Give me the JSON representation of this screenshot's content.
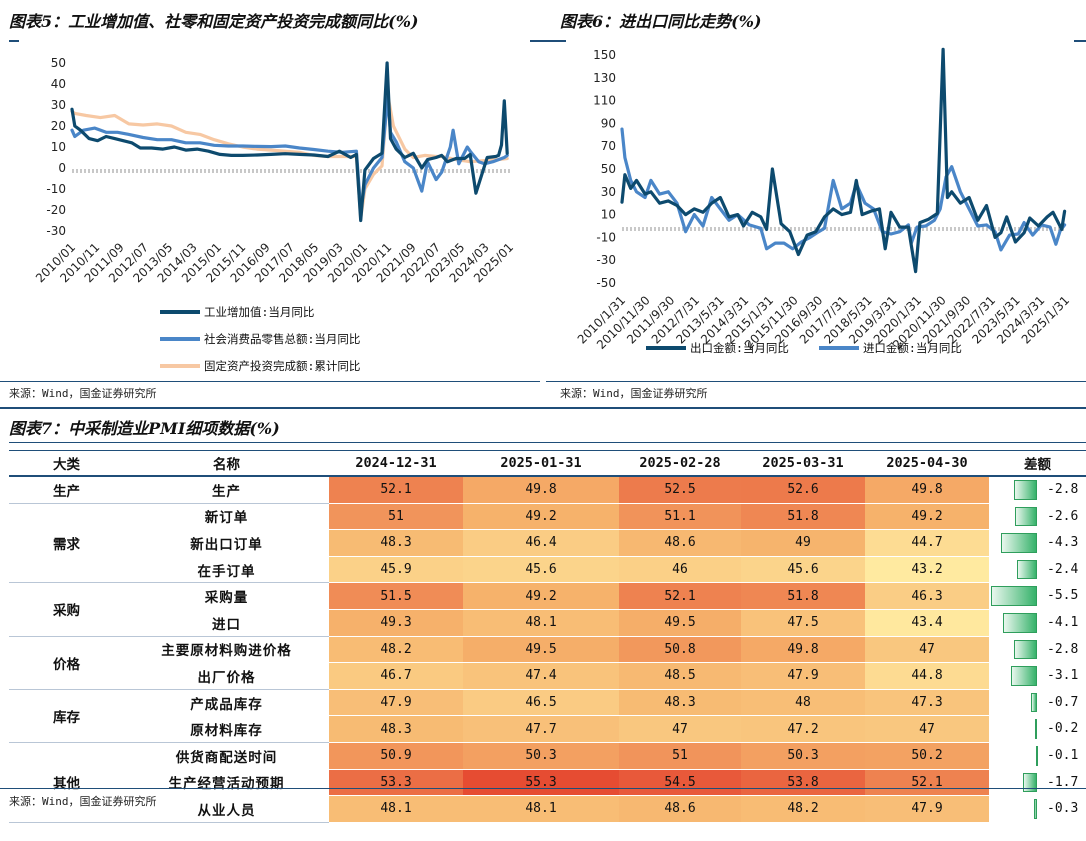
{
  "chart5": {
    "title": "图表5：工业增加值、社零和固定资产投资完成额同比(%)",
    "source": "来源：Wind，国金证券研究所",
    "chart_data": {
      "type": "line",
      "title": "图表5：工业增加值、社零和固定资产投资完成额同比(%)",
      "ylim": [
        -30,
        50
      ],
      "yticks": [
        50,
        40,
        30,
        20,
        10,
        0,
        -10,
        -20,
        -30
      ],
      "xticks": [
        "2010/01",
        "2010/11",
        "2011/09",
        "2012/07",
        "2013/05",
        "2014/03",
        "2015/01",
        "2015/11",
        "2016/09",
        "2017/07",
        "2018/05",
        "2019/03",
        "2020/01",
        "2020/11",
        "2021/09",
        "2022/07",
        "2023/05",
        "2024/03",
        "2025/01"
      ],
      "x_start": 2010.0,
      "x_end": 2025.4,
      "series": [
        {
          "name": "工业增加值:当月同比",
          "color": "#0d4a6e",
          "x": [
            2010.0,
            2010.1,
            2010.3,
            2010.6,
            2010.9,
            2011.2,
            2011.5,
            2011.8,
            2012.1,
            2012.4,
            2012.8,
            2013.2,
            2013.6,
            2014.0,
            2014.4,
            2014.8,
            2015.2,
            2015.6,
            2016.0,
            2016.5,
            2017.0,
            2017.5,
            2018.0,
            2018.5,
            2019.0,
            2019.4,
            2019.8,
            2020.0,
            2020.15,
            2020.3,
            2020.6,
            2020.9,
            2021.08,
            2021.2,
            2021.4,
            2021.7,
            2022.0,
            2022.3,
            2022.5,
            2022.8,
            2023.0,
            2023.2,
            2023.5,
            2023.8,
            2024.0,
            2024.2,
            2024.6,
            2024.9,
            2025.0,
            2025.1,
            2025.2,
            2025.3
          ],
          "values": [
            28,
            20,
            18,
            14,
            13,
            15,
            14,
            13,
            12,
            9.5,
            9.5,
            9,
            10,
            8.5,
            9,
            8,
            6.5,
            6,
            6,
            6.2,
            6.5,
            6.8,
            6.5,
            6.2,
            5.5,
            8,
            5,
            6.5,
            -25,
            -1,
            4.5,
            7,
            50,
            14,
            9,
            5,
            7,
            0,
            4,
            5,
            6,
            3,
            4.5,
            4.5,
            6.5,
            -12,
            5,
            5.5,
            6,
            11,
            32,
            7
          ]
        },
        {
          "name": "社会消费品零售总额:当月同比",
          "color": "#4a86c8",
          "x": [
            2010.0,
            2010.1,
            2010.4,
            2010.8,
            2011.2,
            2011.6,
            2012.0,
            2012.5,
            2013.0,
            2013.5,
            2014.0,
            2014.5,
            2015.0,
            2015.5,
            2016.0,
            2016.5,
            2017.0,
            2017.5,
            2018.0,
            2018.5,
            2019.0,
            2019.5,
            2020.0,
            2020.15,
            2020.3,
            2020.6,
            2020.9,
            2021.1,
            2021.2,
            2021.4,
            2021.7,
            2022.0,
            2022.3,
            2022.5,
            2022.8,
            2023.0,
            2023.3,
            2023.4,
            2023.6,
            2023.9,
            2024.0,
            2024.3,
            2024.5,
            2024.8,
            2025.0,
            2025.2,
            2025.3
          ],
          "values": [
            18,
            15,
            18,
            19,
            17,
            17,
            16,
            14.5,
            13.5,
            13.5,
            12,
            12,
            10.8,
            10.5,
            10.5,
            10.3,
            10.2,
            10.5,
            9.5,
            8.8,
            8,
            7.5,
            8,
            -20,
            -8,
            0,
            5,
            34,
            17,
            12.5,
            3,
            0,
            -11,
            3,
            -5.5,
            -2,
            10,
            18,
            2,
            10,
            8,
            3,
            2,
            3,
            4,
            5,
            6
          ]
        },
        {
          "name": "固定资产投资完成额:累计同比",
          "color": "#f7c8a3",
          "x": [
            2010.0,
            2010.1,
            2010.5,
            2011.0,
            2011.5,
            2012.0,
            2012.5,
            2013.0,
            2013.5,
            2014.0,
            2014.5,
            2015.0,
            2015.5,
            2016.0,
            2016.5,
            2017.0,
            2017.5,
            2018.0,
            2018.5,
            2019.0,
            2019.5,
            2020.0,
            2020.15,
            2020.3,
            2020.6,
            2020.9,
            2021.1,
            2021.3,
            2021.7,
            2022.0,
            2022.4,
            2022.8,
            2023.0,
            2023.5,
            2024.0,
            2024.5,
            2025.0,
            2025.3
          ],
          "values": [
            27,
            26,
            25,
            24,
            25,
            21,
            20.5,
            21,
            20,
            17,
            16,
            13.5,
            11.5,
            10,
            9,
            8.5,
            8,
            7.5,
            6,
            5.5,
            5.5,
            5.5,
            -24,
            -10,
            -3,
            1,
            35,
            20,
            9,
            5,
            6,
            5.5,
            5.5,
            4,
            3,
            3.5,
            4,
            4.5
          ]
        }
      ]
    }
  },
  "chart6": {
    "title": "图表6：进出口同比走势(%)",
    "source": "来源：Wind，国金证券研究所",
    "chart_data": {
      "type": "line",
      "title": "图表6：进出口同比走势(%)",
      "ylim": [
        -50,
        150
      ],
      "yticks": [
        150,
        130,
        110,
        90,
        70,
        50,
        30,
        10,
        -10,
        -30,
        -50
      ],
      "xticks": [
        "2010/1/31",
        "2010/11/30",
        "2011/9/30",
        "2012/7/31",
        "2013/5/31",
        "2014/3/31",
        "2015/1/31",
        "2015/11/30",
        "2016/9/30",
        "2017/7/31",
        "2018/5/31",
        "2019/3/31",
        "2020/1/31",
        "2020/11/30",
        "2021/9/30",
        "2022/7/31",
        "2023/5/31",
        "2024/3/31",
        "2025/1/31"
      ],
      "x_start": 2010.0,
      "x_end": 2025.35,
      "series": [
        {
          "name": "出口金额:当月同比",
          "color": "#0d4a6e",
          "x": [
            2010.0,
            2010.1,
            2010.3,
            2010.5,
            2010.8,
            2011.0,
            2011.3,
            2011.6,
            2011.9,
            2012.2,
            2012.5,
            2012.8,
            2013.1,
            2013.4,
            2013.7,
            2014.0,
            2014.2,
            2014.5,
            2014.8,
            2015.0,
            2015.2,
            2015.5,
            2015.8,
            2016.1,
            2016.4,
            2016.7,
            2017.0,
            2017.3,
            2017.6,
            2017.9,
            2018.1,
            2018.3,
            2018.6,
            2018.9,
            2019.1,
            2019.3,
            2019.6,
            2019.9,
            2020.0,
            2020.15,
            2020.3,
            2020.6,
            2020.9,
            2021.1,
            2021.25,
            2021.4,
            2021.7,
            2022.0,
            2022.3,
            2022.6,
            2022.9,
            2023.1,
            2023.3,
            2023.6,
            2023.9,
            2024.1,
            2024.4,
            2024.7,
            2024.9,
            2025.1,
            2025.2,
            2025.3
          ],
          "values": [
            21,
            45,
            33,
            40,
            28,
            30,
            20,
            22,
            18,
            10,
            15,
            12,
            20,
            25,
            8,
            10,
            0,
            12,
            8,
            -3,
            50,
            2,
            -5,
            -25,
            -8,
            -5,
            8,
            15,
            10,
            12,
            40,
            10,
            13,
            15,
            -20,
            12,
            -1,
            -1,
            -17,
            -40,
            3,
            6,
            11,
            155,
            25,
            30,
            20,
            25,
            5,
            18,
            -10,
            -6,
            8,
            -14,
            -6,
            7,
            0,
            8,
            12,
            2,
            -3,
            13
          ]
        },
        {
          "name": "进口金额:当月同比",
          "color": "#4a86c8",
          "x": [
            2010.0,
            2010.1,
            2010.3,
            2010.5,
            2010.8,
            2011.0,
            2011.3,
            2011.6,
            2011.9,
            2012.2,
            2012.5,
            2012.8,
            2013.1,
            2013.4,
            2013.7,
            2014.0,
            2014.4,
            2014.8,
            2015.0,
            2015.3,
            2015.6,
            2015.9,
            2016.2,
            2016.5,
            2016.8,
            2017.0,
            2017.3,
            2017.6,
            2017.9,
            2018.1,
            2018.4,
            2018.7,
            2019.0,
            2019.3,
            2019.6,
            2019.9,
            2020.0,
            2020.2,
            2020.5,
            2020.8,
            2021.0,
            2021.2,
            2021.4,
            2021.7,
            2022.0,
            2022.3,
            2022.6,
            2022.9,
            2023.1,
            2023.4,
            2023.7,
            2023.9,
            2024.2,
            2024.5,
            2024.8,
            2025.0,
            2025.15,
            2025.3
          ],
          "values": [
            85,
            60,
            40,
            30,
            25,
            40,
            28,
            30,
            20,
            -5,
            10,
            0,
            25,
            15,
            5,
            10,
            1,
            -2,
            -20,
            -15,
            -15,
            -20,
            -14,
            -10,
            -5,
            -2,
            40,
            15,
            20,
            37,
            20,
            15,
            -5,
            -7,
            -5,
            1,
            -15,
            -1,
            0,
            5,
            15,
            43,
            52,
            30,
            15,
            0,
            1,
            -5,
            -21,
            -8,
            -7,
            3,
            -8,
            1,
            -1,
            -16,
            -4,
            1
          ]
        }
      ]
    }
  },
  "table": {
    "title": "图表7：中采制造业PMI细项数据(%)",
    "source": "来源：Wind，国金证券研究所",
    "headers": {
      "category": "大类",
      "name": "名称",
      "c1": "2024-12-31",
      "c2": "2025-01-31",
      "c3": "2025-02-28",
      "c4": "2025-03-31",
      "c5": "2025-04-30",
      "diff": "差额"
    },
    "rows": [
      {
        "name": "生产",
        "v": [
          "52.1",
          "49.8",
          "52.5",
          "52.6",
          "49.8"
        ],
        "diff": "-2.8",
        "diff_value": -2.8
      },
      {
        "name": "新订单",
        "v": [
          "51",
          "49.2",
          "51.1",
          "51.8",
          "49.2"
        ],
        "diff": "-2.6",
        "diff_value": -2.6
      },
      {
        "name": "新出口订单",
        "v": [
          "48.3",
          "46.4",
          "48.6",
          "49",
          "44.7"
        ],
        "diff": "-4.3",
        "diff_value": -4.3
      },
      {
        "name": "在手订单",
        "v": [
          "45.9",
          "45.6",
          "46",
          "45.6",
          "43.2"
        ],
        "diff": "-2.4",
        "diff_value": -2.4
      },
      {
        "name": "采购量",
        "v": [
          "51.5",
          "49.2",
          "52.1",
          "51.8",
          "46.3"
        ],
        "diff": "-5.5",
        "diff_value": -5.5
      },
      {
        "name": "进口",
        "v": [
          "49.3",
          "48.1",
          "49.5",
          "47.5",
          "43.4"
        ],
        "diff": "-4.1",
        "diff_value": -4.1
      },
      {
        "name": "主要原材料购进价格",
        "v": [
          "48.2",
          "49.5",
          "50.8",
          "49.8",
          "47"
        ],
        "diff": "-2.8",
        "diff_value": -2.8
      },
      {
        "name": "出厂价格",
        "v": [
          "46.7",
          "47.4",
          "48.5",
          "47.9",
          "44.8"
        ],
        "diff": "-3.1",
        "diff_value": -3.1
      },
      {
        "name": "产成品库存",
        "v": [
          "47.9",
          "46.5",
          "48.3",
          "48",
          "47.3"
        ],
        "diff": "-0.7",
        "diff_value": -0.7
      },
      {
        "name": "原材料库存",
        "v": [
          "48.3",
          "47.7",
          "47",
          "47.2",
          "47"
        ],
        "diff": "-0.2",
        "diff_value": -0.2
      },
      {
        "name": "供货商配送时间",
        "v": [
          "50.9",
          "50.3",
          "51",
          "50.3",
          "50.2"
        ],
        "diff": "-0.1",
        "diff_value": -0.1
      },
      {
        "name": "生产经营活动预期",
        "v": [
          "53.3",
          "55.3",
          "54.5",
          "53.8",
          "52.1"
        ],
        "diff": "-1.7",
        "diff_value": -1.7
      },
      {
        "name": "从业人员",
        "v": [
          "48.1",
          "48.1",
          "48.6",
          "48.2",
          "47.9"
        ],
        "diff": "-0.3",
        "diff_value": -0.3
      }
    ],
    "categories": [
      {
        "label": "生产",
        "row": 0,
        "span": 1
      },
      {
        "label": "需求",
        "row": 1,
        "span": 3
      },
      {
        "label": "采购",
        "row": 4,
        "span": 2
      },
      {
        "label": "价格",
        "row": 6,
        "span": 2
      },
      {
        "label": "库存",
        "row": 8,
        "span": 2
      },
      {
        "label": "其他",
        "row": 10,
        "span": 3
      }
    ]
  }
}
